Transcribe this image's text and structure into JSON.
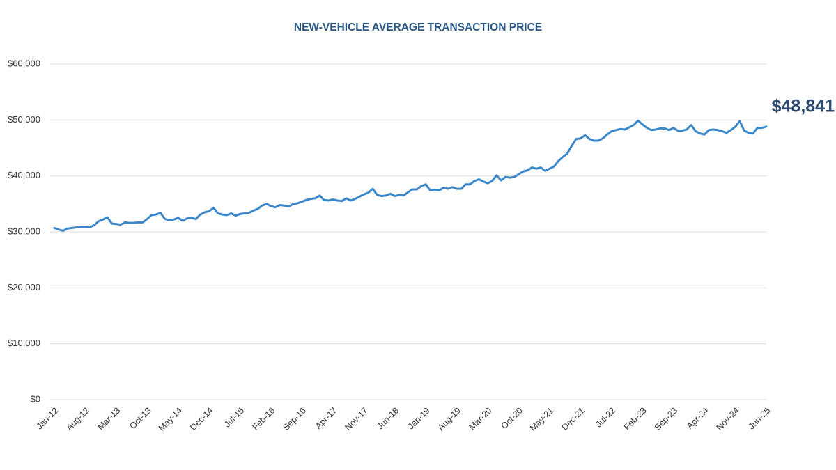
{
  "chart_data": {
    "type": "line",
    "title": "NEW-VEHICLE AVERAGE TRANSACTION PRICE",
    "categories": [
      "Jan-12",
      null,
      null,
      null,
      null,
      null,
      null,
      "Aug-12",
      null,
      null,
      null,
      null,
      null,
      null,
      "Mar-13",
      null,
      null,
      null,
      null,
      null,
      null,
      "Oct-13",
      null,
      null,
      null,
      null,
      null,
      null,
      "May-14",
      null,
      null,
      null,
      null,
      null,
      null,
      "Dec-14",
      null,
      null,
      null,
      null,
      null,
      null,
      "Jul-15",
      null,
      null,
      null,
      null,
      null,
      null,
      "Feb-16",
      null,
      null,
      null,
      null,
      null,
      null,
      "Sep-16",
      null,
      null,
      null,
      null,
      null,
      null,
      "Apr-17",
      null,
      null,
      null,
      null,
      null,
      null,
      "Nov-17",
      null,
      null,
      null,
      null,
      null,
      null,
      "Jun-18",
      null,
      null,
      null,
      null,
      null,
      null,
      "Jan-19",
      null,
      null,
      null,
      null,
      null,
      null,
      "Aug-19",
      null,
      null,
      null,
      null,
      null,
      null,
      "Mar-20",
      null,
      null,
      null,
      null,
      null,
      null,
      "Oct-20",
      null,
      null,
      null,
      null,
      null,
      null,
      "May-21",
      null,
      null,
      null,
      null,
      null,
      null,
      "Dec-21",
      null,
      null,
      null,
      null,
      null,
      null,
      "Jul-22",
      null,
      null,
      null,
      null,
      null,
      null,
      "Feb-23",
      null,
      null,
      null,
      null,
      null,
      null,
      "Sep-23",
      null,
      null,
      null,
      null,
      null,
      null,
      "Apr-24",
      null,
      null,
      null,
      null,
      null,
      null,
      "Nov-24",
      null,
      null,
      null,
      null,
      null,
      null,
      "Jun-25"
    ],
    "series": [
      {
        "name": "Average transaction price",
        "color": "#3b87c9",
        "values": [
          30700,
          30400,
          30200,
          30600,
          30700,
          30800,
          30900,
          30900,
          30800,
          31200,
          31900,
          32200,
          32600,
          31500,
          31400,
          31300,
          31700,
          31600,
          31600,
          31700,
          31700,
          32300,
          33000,
          33100,
          33400,
          32300,
          32100,
          32200,
          32500,
          32000,
          32400,
          32500,
          32300,
          33100,
          33500,
          33700,
          34300,
          33300,
          33100,
          33000,
          33300,
          32900,
          33200,
          33300,
          33400,
          33800,
          34100,
          34700,
          35000,
          34600,
          34400,
          34800,
          34700,
          34500,
          35000,
          35100,
          35400,
          35700,
          35900,
          36000,
          36500,
          35700,
          35600,
          35800,
          35600,
          35500,
          36000,
          35600,
          35900,
          36300,
          36700,
          37000,
          37700,
          36600,
          36400,
          36500,
          36800,
          36400,
          36600,
          36500,
          37100,
          37600,
          37600,
          38200,
          38500,
          37400,
          37500,
          37400,
          37900,
          37700,
          38000,
          37700,
          37700,
          38500,
          38500,
          39100,
          39400,
          39000,
          38700,
          39100,
          40100,
          39200,
          39800,
          39700,
          39800,
          40300,
          40800,
          41000,
          41500,
          41300,
          41500,
          40900,
          41300,
          41700,
          42700,
          43400,
          44000,
          45400,
          46600,
          46700,
          47300,
          46600,
          46300,
          46300,
          46700,
          47400,
          48000,
          48200,
          48400,
          48300,
          48700,
          49100,
          49900,
          49200,
          48600,
          48200,
          48300,
          48500,
          48500,
          48200,
          48600,
          48100,
          48100,
          48300,
          49100,
          48000,
          47600,
          47400,
          48200,
          48300,
          48200,
          48000,
          47700,
          48200,
          48800,
          49800,
          48100,
          47700,
          47600,
          48600,
          48600,
          48841
        ],
        "value_labels": [
          null,
          null,
          null,
          null,
          null,
          null,
          null,
          null,
          null,
          null,
          null,
          null,
          null,
          null,
          null,
          null,
          null,
          null,
          null,
          null,
          null,
          null,
          null,
          null,
          null,
          null,
          null,
          null,
          null,
          null,
          null,
          null,
          null,
          null,
          null,
          null,
          null,
          null,
          null,
          null,
          null,
          null,
          null,
          null,
          null,
          null,
          null,
          null,
          null,
          null,
          null,
          null,
          null,
          null,
          null,
          null,
          null,
          null,
          null,
          null,
          null,
          null,
          null,
          null,
          null,
          null,
          null,
          null,
          null,
          null,
          null,
          null,
          null,
          null,
          null,
          null,
          null,
          null,
          null,
          null,
          null,
          null,
          null,
          null,
          null,
          null,
          null,
          null,
          null,
          null,
          null,
          null,
          null,
          null,
          null,
          null,
          null,
          null,
          null,
          null,
          null,
          null,
          null,
          null,
          null,
          null,
          null,
          null,
          null,
          null,
          null,
          null,
          null,
          null,
          null,
          null,
          null,
          null,
          null,
          null,
          null,
          null,
          null,
          null,
          null,
          null,
          null,
          null,
          null,
          null,
          null,
          null,
          null,
          null,
          null,
          null,
          null,
          null,
          null,
          null,
          null,
          null,
          null,
          null,
          null,
          null,
          null,
          null,
          null,
          null,
          null,
          null,
          null,
          null,
          null,
          null,
          null,
          null,
          null,
          null,
          null,
          "$48,841"
        ]
      }
    ],
    "ylim": [
      0,
      60000
    ],
    "yticks": [
      {
        "value": 0,
        "label": "$0"
      },
      {
        "value": 10000,
        "label": "$10,000"
      },
      {
        "value": 20000,
        "label": "$20,000"
      },
      {
        "value": 30000,
        "label": "$30,000"
      },
      {
        "value": 40000,
        "label": "$40,000"
      },
      {
        "value": 50000,
        "label": "$50,000"
      },
      {
        "value": 60000,
        "label": "$60,000"
      }
    ],
    "grid": true
  }
}
